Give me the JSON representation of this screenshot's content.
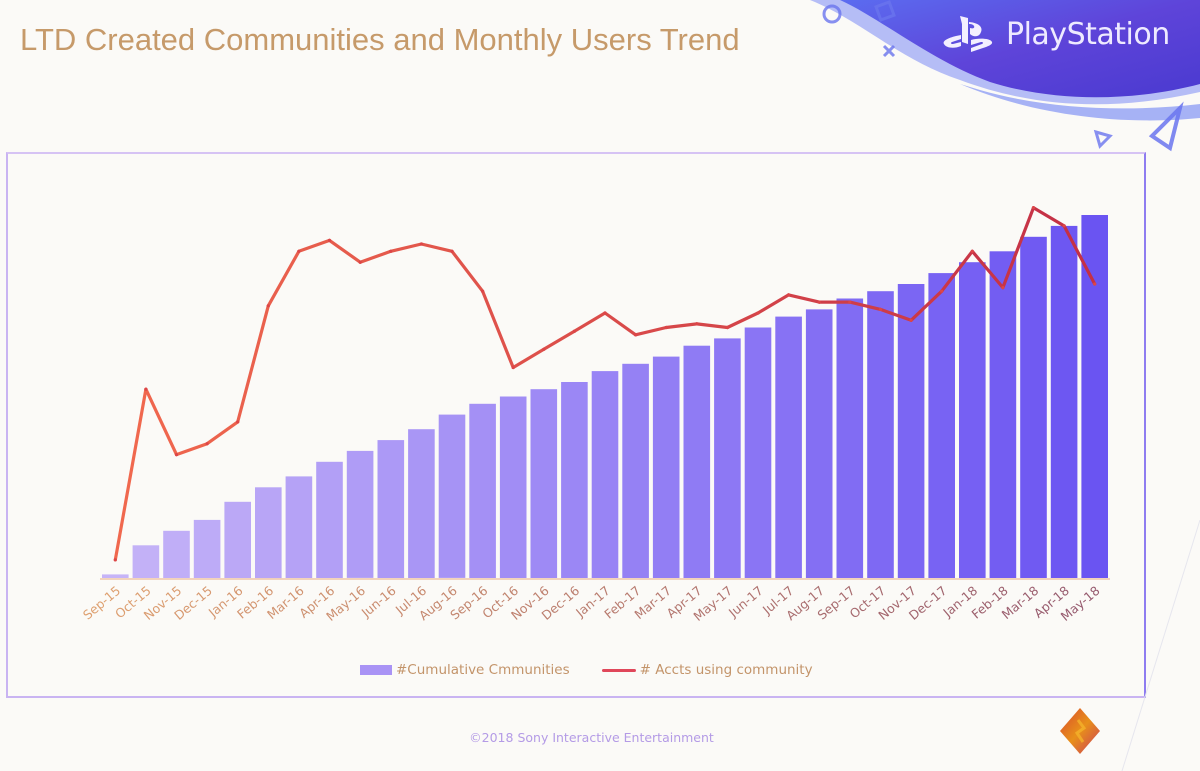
{
  "slide": {
    "title": "LTD Created Communities and Monthly Users Trend",
    "brand": "PlayStation",
    "brand_icon": "playstation-logo-icon",
    "footer": "©2018 Sony Interactive Entertainment",
    "corner_icon": "sony-diamond-logo-icon",
    "colors": {
      "title": "#c69a6a",
      "brand_band": "#6a4fe0",
      "bar_start": "#c4b2f6",
      "bar_end": "#6c55f2",
      "line": "#e0475a",
      "axis_label": "#c3946a",
      "frame": "#c9b4f2"
    }
  },
  "chart_data": {
    "type": "bar",
    "combo": "bar+line",
    "title": "LTD Created Communities and Monthly Users Trend",
    "xlabel": "",
    "ylabel": "",
    "y_axis_labels_shown": false,
    "value_units": "relative (0-100, no y-axis scale shown)",
    "ylim": [
      0,
      105
    ],
    "grid": false,
    "legend_position": "bottom-center",
    "categories": [
      "Sep-15",
      "Oct-15",
      "Nov-15",
      "Dec-15",
      "Jan-16",
      "Feb-16",
      "Mar-16",
      "Apr-16",
      "May-16",
      "Jun-16",
      "Jul-16",
      "Aug-16",
      "Sep-16",
      "Oct-16",
      "Nov-16",
      "Dec-16",
      "Jan-17",
      "Feb-17",
      "Mar-17",
      "Apr-17",
      "May-17",
      "Jun-17",
      "Jul-17",
      "Aug-17",
      "Sep-17",
      "Oct-17",
      "Nov-17",
      "Dec-17",
      "Jan-18",
      "Feb-18",
      "Mar-18",
      "Apr-18",
      "May-18"
    ],
    "series": [
      {
        "name": "#Cumulative Cmmunities",
        "type": "bar",
        "color": "#8f7bf3",
        "values": [
          1,
          9,
          13,
          16,
          21,
          25,
          28,
          32,
          35,
          38,
          41,
          45,
          48,
          50,
          52,
          54,
          57,
          59,
          61,
          64,
          66,
          69,
          72,
          74,
          77,
          79,
          81,
          84,
          87,
          90,
          94,
          97,
          100
        ]
      },
      {
        "name": "# Accts using community",
        "type": "line",
        "color": "#e0475a",
        "values": [
          5,
          52,
          34,
          37,
          43,
          75,
          90,
          93,
          87,
          90,
          92,
          90,
          79,
          58,
          63,
          68,
          73,
          67,
          69,
          70,
          69,
          73,
          78,
          76,
          76,
          74,
          71,
          79,
          90,
          80,
          102,
          97,
          81
        ]
      }
    ]
  }
}
